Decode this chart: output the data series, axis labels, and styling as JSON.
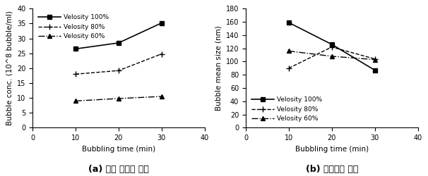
{
  "left": {
    "x": [
      10,
      20,
      30
    ],
    "series_order": [
      "Velosity 100%",
      "Velosity 80%",
      "Velosity 60%"
    ],
    "series": {
      "Velosity 100%": [
        26.5,
        28.5,
        35.2
      ],
      "Velosity 80%": [
        18.0,
        19.2,
        24.8
      ],
      "Velosity 60%": [
        9.0,
        9.8,
        10.5
      ]
    },
    "xlabel": "Bubbling time (min)",
    "ylabel": "Bubble conc. (10^8 bubble/ml)",
    "xlim": [
      0,
      40
    ],
    "ylim": [
      0,
      40
    ],
    "xticks": [
      0,
      10,
      20,
      30,
      40
    ],
    "yticks": [
      0,
      5,
      10,
      15,
      20,
      25,
      30,
      35,
      40
    ],
    "legend_loc": "upper left",
    "caption": "(a) 기포 개체수 평균"
  },
  "right": {
    "x": [
      10,
      20,
      30
    ],
    "series_order": [
      "Velosity 100%",
      "Velosity 80%",
      "Velosity 60%"
    ],
    "series": {
      "Velosity 100%": [
        159,
        126,
        87
      ],
      "Velosity 80%": [
        90,
        122,
        104
      ],
      "Velosity 60%": [
        116,
        108,
        103
      ]
    },
    "xlabel": "Bubbling time (min)",
    "ylabel": "Bubble mean size (nm)",
    "xlim": [
      0,
      40
    ],
    "ylim": [
      0,
      180
    ],
    "xticks": [
      0,
      10,
      20,
      30,
      40
    ],
    "yticks": [
      0,
      20,
      40,
      60,
      80,
      100,
      120,
      140,
      160,
      180
    ],
    "legend_loc": "lower left",
    "caption": "(b) 기포크기 평균"
  },
  "styles": {
    "Velosity 100%": {
      "linestyle": "-",
      "marker": "s",
      "markersize": 4,
      "linewidth": 1.2,
      "markerfacecolor": "black"
    },
    "Velosity 80%": {
      "linestyle": "--",
      "marker": "+",
      "markersize": 6,
      "linewidth": 1.0,
      "markerfacecolor": "black"
    },
    "Velosity 60%": {
      "linestyle": "-.",
      "marker": "^",
      "markersize": 4,
      "linewidth": 1.0,
      "markerfacecolor": "black"
    }
  },
  "color": "#000000",
  "tick_fontsize": 7,
  "label_fontsize": 7.5,
  "legend_fontsize": 6.5,
  "caption_fontsize": 9
}
